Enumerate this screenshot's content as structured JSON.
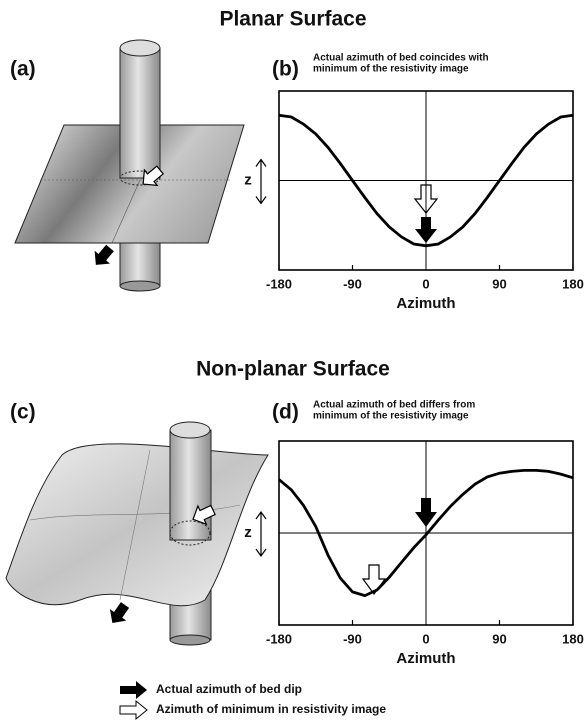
{
  "sections": [
    {
      "title": "Planar Surface",
      "left_label": "(a)"
    },
    {
      "title": "Non-planar Surface",
      "left_label": "(c)"
    }
  ],
  "legend": [
    "Actual azimuth of bed dip",
    "Azimuth of minimum in resistivity image"
  ],
  "chart_data": [
    {
      "type": "line",
      "panel_label": "(b)",
      "annotation": [
        "Actual azimuth of bed coincides with",
        "minimum of the resistivity image"
      ],
      "xlabel": "Azimuth",
      "ylabel": "z",
      "color": "#000000",
      "x": [
        -180,
        -165,
        -150,
        -135,
        -120,
        -105,
        -90,
        -75,
        -60,
        -45,
        -30,
        -15,
        0,
        15,
        30,
        45,
        60,
        75,
        90,
        105,
        120,
        135,
        150,
        165,
        180
      ],
      "values": [
        0.73,
        0.71,
        0.63,
        0.52,
        0.37,
        0.19,
        0,
        -0.19,
        -0.37,
        -0.52,
        -0.63,
        -0.71,
        -0.73,
        -0.71,
        -0.63,
        -0.52,
        -0.37,
        -0.19,
        0,
        0.19,
        0.37,
        0.52,
        0.63,
        0.71,
        0.73
      ],
      "xlim": [
        -180,
        180
      ],
      "xticks": [
        -180,
        -90,
        0,
        90,
        180
      ],
      "ylim": [
        -1,
        1
      ]
    },
    {
      "type": "line",
      "panel_label": "(d)",
      "annotation": [
        "Actual azimuth of bed differs from",
        "minimum of the resistivity image"
      ],
      "xlabel": "Azimuth",
      "ylabel": "z",
      "color": "#000000",
      "x": [
        -180,
        -165,
        -150,
        -135,
        -120,
        -105,
        -90,
        -75,
        -60,
        -45,
        -30,
        -15,
        0,
        15,
        30,
        45,
        60,
        75,
        90,
        105,
        120,
        135,
        150,
        165,
        180
      ],
      "values": [
        0.58,
        0.47,
        0.3,
        0.07,
        -0.24,
        -0.49,
        -0.64,
        -0.68,
        -0.62,
        -0.48,
        -0.32,
        -0.16,
        -0.02,
        0.14,
        0.29,
        0.42,
        0.53,
        0.61,
        0.65,
        0.67,
        0.68,
        0.68,
        0.67,
        0.64,
        0.6
      ],
      "xlim": [
        -180,
        180
      ],
      "xticks": [
        -180,
        -90,
        0,
        90,
        180
      ],
      "ylim": [
        -1,
        1
      ]
    }
  ]
}
